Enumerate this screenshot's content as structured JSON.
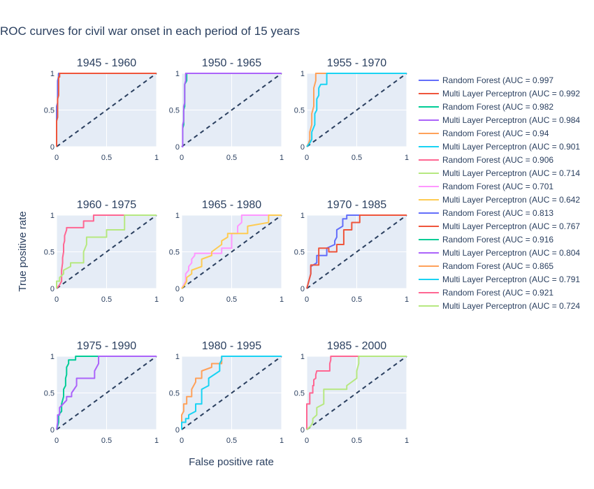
{
  "chart_data": {
    "type": "line",
    "title": "ROC curves for civil war onset in each period of 15 years",
    "xlabel": "False positive rate",
    "ylabel": "True positive rate",
    "xlim": [
      0,
      1
    ],
    "ylim": [
      0,
      1
    ],
    "tick_labels": [
      "0",
      "0.5",
      "1"
    ],
    "grid": true,
    "legend_position": "right",
    "colors": {
      "plot_bg": "#e5ecf6",
      "grid": "#ffffff",
      "diagonal": "#2a3f5f",
      "text": "#2a3f5f"
    },
    "panels": [
      {
        "title": "1945 - 1960",
        "series": [
          {
            "name": "Random Forest (AUC = 0.997",
            "color": "#636efa",
            "x": [
              0,
              0,
              0.01,
              0.01,
              0.02,
              0.02,
              1
            ],
            "y": [
              0,
              0.55,
              0.6,
              0.9,
              0.95,
              1,
              1
            ]
          },
          {
            "name": "Multi Layer Perceptron (AUC = 0.992",
            "color": "#ef553b",
            "x": [
              0,
              0,
              0.01,
              0.01,
              0.02,
              0.02,
              0.03,
              0.03,
              1
            ],
            "y": [
              0,
              0.35,
              0.4,
              0.65,
              0.7,
              0.95,
              0.95,
              1,
              1
            ]
          }
        ]
      },
      {
        "title": "1950 - 1965",
        "series": [
          {
            "name": "Random Forest (AUC = 0.982",
            "color": "#00cc96",
            "x": [
              0,
              0.01,
              0.01,
              0.02,
              0.02,
              0.03,
              0.03,
              0.05,
              0.05,
              1
            ],
            "y": [
              0,
              0,
              0.25,
              0.3,
              0.5,
              0.55,
              0.85,
              0.9,
              1,
              1
            ]
          },
          {
            "name": "Multi Layer Perceptron (AUC = 0.984",
            "color": "#ab63fa",
            "x": [
              0,
              0.01,
              0.01,
              0.02,
              0.02,
              0.03,
              0.03,
              0.04,
              0.04,
              1
            ],
            "y": [
              0,
              0,
              0.3,
              0.35,
              0.55,
              0.6,
              0.85,
              0.9,
              1,
              1
            ]
          }
        ]
      },
      {
        "title": "1955 - 1970",
        "series": [
          {
            "name": "Random Forest (AUC = 0.94",
            "color": "#ffa15a",
            "x": [
              0,
              0.02,
              0.03,
              0.03,
              0.05,
              0.05,
              0.07,
              0.07,
              0.09,
              0.09,
              1
            ],
            "y": [
              0,
              0.05,
              0.1,
              0.2,
              0.3,
              0.45,
              0.55,
              0.8,
              0.9,
              1,
              1
            ]
          },
          {
            "name": "Multi Layer Perceptron (AUC = 0.901",
            "color": "#19d3f3",
            "x": [
              0,
              0.03,
              0.05,
              0.05,
              0.08,
              0.08,
              0.1,
              0.1,
              0.12,
              0.12,
              0.14,
              0.14,
              0.2,
              0.2,
              1
            ],
            "y": [
              0,
              0.05,
              0.1,
              0.2,
              0.3,
              0.45,
              0.5,
              0.65,
              0.7,
              0.8,
              0.85,
              0.85,
              0.85,
              1,
              1
            ]
          }
        ]
      },
      {
        "title": "1960 - 1975",
        "series": [
          {
            "name": "Random Forest (AUC = 0.906",
            "color": "#ff6692",
            "x": [
              0,
              0.03,
              0.05,
              0.05,
              0.06,
              0.06,
              0.07,
              0.07,
              0.08,
              0.08,
              0.1,
              0.1,
              0.27,
              0.27,
              0.37,
              0.37,
              0.67,
              0.67,
              1
            ],
            "y": [
              0,
              0.05,
              0.1,
              0.25,
              0.35,
              0.42,
              0.5,
              0.6,
              0.65,
              0.72,
              0.8,
              0.83,
              0.83,
              0.92,
              0.92,
              1,
              1,
              1,
              1
            ]
          },
          {
            "name": "Multi Layer Perceptron (AUC = 0.714",
            "color": "#b6e880",
            "x": [
              0,
              0,
              0.03,
              0.03,
              0.07,
              0.07,
              0.14,
              0.14,
              0.27,
              0.27,
              0.3,
              0.3,
              0.5,
              0.5,
              0.68,
              0.68,
              1
            ],
            "y": [
              0,
              0.1,
              0.1,
              0.15,
              0.2,
              0.25,
              0.3,
              0.35,
              0.35,
              0.5,
              0.6,
              0.7,
              0.7,
              0.8,
              0.8,
              1,
              1
            ]
          }
        ]
      },
      {
        "title": "1965 - 1980",
        "series": [
          {
            "name": "Random Forest (AUC = 0.701",
            "color": "#ff97ff",
            "x": [
              0,
              0.02,
              0.04,
              0.04,
              0.07,
              0.07,
              0.1,
              0.1,
              0.13,
              0.13,
              0.4,
              0.4,
              0.5,
              0.5,
              0.56,
              0.56,
              0.6,
              0.6,
              1
            ],
            "y": [
              0,
              0.05,
              0.1,
              0.2,
              0.25,
              0.3,
              0.35,
              0.4,
              0.45,
              0.48,
              0.48,
              0.55,
              0.55,
              0.75,
              0.75,
              0.85,
              0.9,
              1,
              1
            ]
          },
          {
            "name": "Multi Layer Perceptron (AUC = 0.642",
            "color": "#fecb52",
            "x": [
              0,
              0.03,
              0.05,
              0.05,
              0.1,
              0.1,
              0.2,
              0.2,
              0.3,
              0.3,
              0.4,
              0.4,
              0.46,
              0.46,
              0.66,
              0.66,
              0.87,
              0.87,
              1
            ],
            "y": [
              0,
              0.05,
              0.1,
              0.15,
              0.2,
              0.25,
              0.3,
              0.4,
              0.45,
              0.5,
              0.6,
              0.65,
              0.7,
              0.75,
              0.75,
              0.85,
              0.9,
              1,
              1
            ]
          }
        ]
      },
      {
        "title": "1970 - 1985",
        "series": [
          {
            "name": "Random Forest (AUC = 0.813",
            "color": "#636efa",
            "x": [
              0,
              0.02,
              0.04,
              0.04,
              0.1,
              0.1,
              0.2,
              0.2,
              0.28,
              0.28,
              0.3,
              0.3,
              0.36,
              0.36,
              0.4,
              0.4,
              1
            ],
            "y": [
              0,
              0.1,
              0.2,
              0.3,
              0.35,
              0.45,
              0.45,
              0.55,
              0.6,
              0.65,
              0.7,
              0.8,
              0.85,
              0.95,
              0.95,
              1,
              1
            ]
          },
          {
            "name": "Multi Layer Perceptron (AUC = 0.767",
            "color": "#ef553b",
            "x": [
              0,
              0.02,
              0.04,
              0.04,
              0.12,
              0.12,
              0.22,
              0.22,
              0.3,
              0.3,
              0.37,
              0.37,
              0.45,
              0.45,
              0.53,
              0.53,
              1
            ],
            "y": [
              0,
              0.1,
              0.2,
              0.32,
              0.32,
              0.55,
              0.55,
              0.5,
              0.5,
              0.6,
              0.6,
              0.8,
              0.8,
              0.9,
              0.9,
              1,
              1
            ]
          }
        ]
      },
      {
        "title": "1975 - 1990",
        "series": [
          {
            "name": "Random Forest (AUC = 0.916",
            "color": "#00cc96",
            "x": [
              0,
              0.02,
              0.02,
              0.05,
              0.05,
              0.07,
              0.07,
              0.09,
              0.09,
              0.1,
              0.1,
              0.12,
              0.12,
              0.19,
              0.19,
              0.2,
              0.2,
              1
            ],
            "y": [
              0,
              0.1,
              0.2,
              0.25,
              0.35,
              0.45,
              0.55,
              0.6,
              0.7,
              0.75,
              0.85,
              0.9,
              0.95,
              0.95,
              1,
              1,
              1,
              1
            ]
          },
          {
            "name": "Multi Layer Perceptron (AUC = 0.804",
            "color": "#ab63fa",
            "x": [
              0,
              0.01,
              0.01,
              0.03,
              0.03,
              0.1,
              0.1,
              0.15,
              0.15,
              0.2,
              0.2,
              0.38,
              0.38,
              0.42,
              0.42,
              1
            ],
            "y": [
              0,
              0.1,
              0.2,
              0.2,
              0.3,
              0.4,
              0.45,
              0.45,
              0.5,
              0.6,
              0.7,
              0.7,
              0.8,
              0.9,
              1,
              1
            ]
          }
        ]
      },
      {
        "title": "1980 - 1995",
        "series": [
          {
            "name": "Random Forest (AUC = 0.865",
            "color": "#ffa15a",
            "x": [
              0,
              0,
              0.02,
              0.02,
              0.05,
              0.05,
              0.1,
              0.1,
              0.14,
              0.14,
              0.2,
              0.2,
              0.3,
              0.3,
              0.4,
              0.4,
              1
            ],
            "y": [
              0,
              0.2,
              0.25,
              0.35,
              0.35,
              0.45,
              0.45,
              0.55,
              0.65,
              0.7,
              0.7,
              0.8,
              0.85,
              0.9,
              0.9,
              1,
              1
            ]
          },
          {
            "name": "Multi Layer Perceptron (AUC = 0.791",
            "color": "#19d3f3",
            "x": [
              0,
              0,
              0.04,
              0.04,
              0.07,
              0.07,
              0.14,
              0.14,
              0.2,
              0.2,
              0.27,
              0.27,
              0.38,
              0.38,
              0.4,
              0.4,
              1
            ],
            "y": [
              0,
              0.1,
              0.1,
              0.15,
              0.15,
              0.2,
              0.25,
              0.35,
              0.35,
              0.55,
              0.6,
              0.7,
              0.8,
              0.9,
              0.95,
              1,
              1
            ]
          }
        ]
      },
      {
        "title": "1985 - 2000",
        "series": [
          {
            "name": "Random Forest (AUC = 0.921",
            "color": "#ff6692",
            "x": [
              0,
              0,
              0.03,
              0.03,
              0.06,
              0.06,
              0.07,
              0.07,
              0.09,
              0.09,
              0.1,
              0.1,
              0.23,
              0.23,
              0.24,
              0.24,
              1
            ],
            "y": [
              0,
              0.35,
              0.35,
              0.5,
              0.5,
              0.6,
              0.6,
              0.68,
              0.7,
              0.75,
              0.8,
              0.8,
              0.8,
              0.9,
              0.95,
              1,
              1
            ]
          },
          {
            "name": "Multi Layer Perceptron (AUC = 0.724",
            "color": "#b6e880",
            "x": [
              0,
              0.04,
              0.06,
              0.06,
              0.1,
              0.1,
              0.17,
              0.17,
              0.4,
              0.4,
              0.5,
              0.5,
              0.52,
              0.52,
              0.7,
              0.7,
              1
            ],
            "y": [
              0,
              0.05,
              0.1,
              0.15,
              0.2,
              0.3,
              0.35,
              0.55,
              0.55,
              0.6,
              0.7,
              0.8,
              0.9,
              1,
              1,
              1,
              1
            ]
          }
        ]
      }
    ]
  }
}
